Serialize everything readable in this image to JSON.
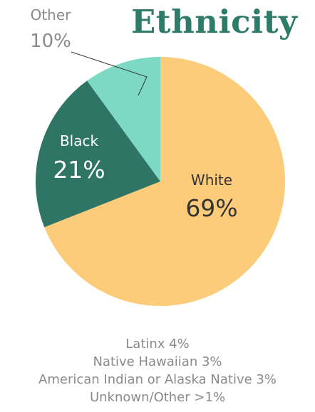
{
  "chart_data": {
    "type": "pie",
    "title": "Ethnicity",
    "slices": [
      {
        "label": "White",
        "value": 69,
        "display": "69%",
        "color": "#fdcc7a"
      },
      {
        "label": "Black",
        "value": 21,
        "display": "21%",
        "color": "#2f7566"
      },
      {
        "label": "Other",
        "value": 10,
        "display": "10%",
        "color": "#7dd9c3"
      }
    ],
    "label_colors": {
      "White": "#333333",
      "Black": "#ffffff",
      "Other": "#8a8a8a"
    },
    "notes": [
      "Latinx 4%",
      "Native Hawaiian 3%",
      "American Indian or Alaska Native 3%",
      "Unknown/Other >1%"
    ]
  }
}
